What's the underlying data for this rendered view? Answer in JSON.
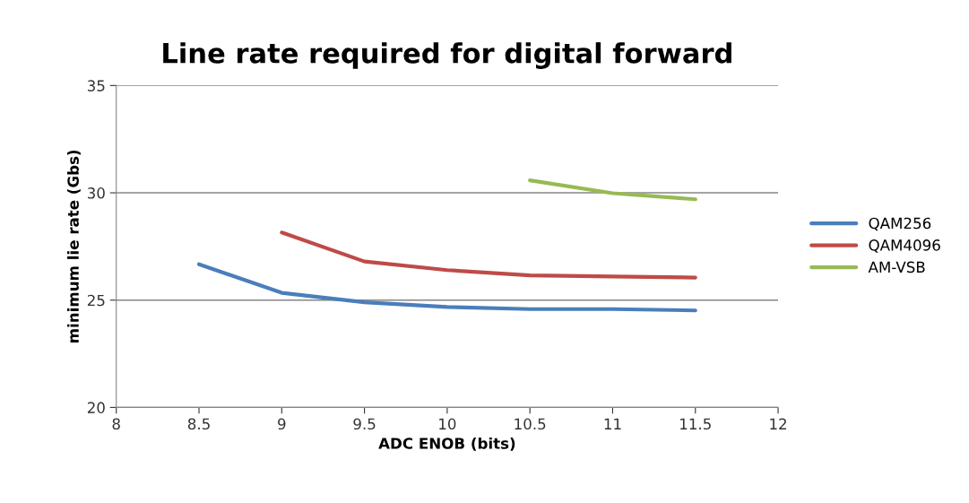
{
  "chart_data": {
    "type": "line",
    "title": "Line rate required for digital forward",
    "xlabel": "ADC ENOB (bits)",
    "ylabel": "minimum lie rate (Gbs)",
    "xlim": [
      8,
      12
    ],
    "xticks": [
      8,
      8.5,
      9,
      9.5,
      10,
      10.5,
      11,
      11.5,
      12
    ],
    "ylim": [
      20,
      35
    ],
    "yticks": [
      20,
      25,
      30,
      35
    ],
    "grid": "y",
    "legend": "right",
    "marker": "none",
    "series": [
      {
        "name": "QAM256",
        "color": "#4a7ebb",
        "x": [
          8.5,
          9,
          9.5,
          10,
          10.5,
          11,
          11.5
        ],
        "values": [
          26.67,
          25.34,
          24.9,
          24.68,
          24.58,
          24.58,
          24.52
        ]
      },
      {
        "name": "QAM4096",
        "color": "#be4b48",
        "x": [
          9,
          9.5,
          10,
          10.5,
          11,
          11.5
        ],
        "values": [
          28.15,
          26.8,
          26.4,
          26.15,
          26.1,
          26.05
        ]
      },
      {
        "name": "AM-VSB",
        "color": "#98b954",
        "x": [
          10.5,
          11,
          11.5
        ],
        "values": [
          30.58,
          29.98,
          29.7
        ]
      }
    ]
  }
}
